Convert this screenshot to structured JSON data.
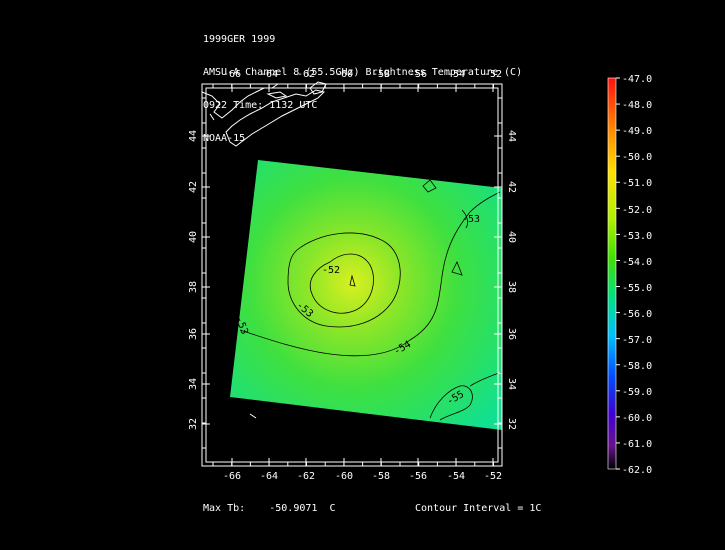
{
  "header": {
    "line1": "1999GER 1999",
    "line2": "AMSU-A Channel 8 (55.5GHz) Brightness Temperature (C)",
    "line3": "0922 Time: 1132 UTC",
    "line4": "NOAA-15"
  },
  "map": {
    "lon_ticks_top": [
      "-66",
      "-64",
      "-62",
      "-60",
      "-58",
      "-56",
      "-54",
      "-52"
    ],
    "lon_ticks_bottom": [
      "-66",
      "-64",
      "-62",
      "-60",
      "-58",
      "-56",
      "-54",
      "-52"
    ],
    "lat_ticks": [
      "44",
      "42",
      "40",
      "38",
      "36",
      "34",
      "32"
    ],
    "contour_labels": [
      "-52",
      "-53",
      "-53",
      "-54",
      "-55",
      "-53"
    ],
    "background": "#000000",
    "field_colors": {
      "warm_center": "#d8f020",
      "mid": "#40e040",
      "cool_edge": "#10e090"
    }
  },
  "colorbar": {
    "labels": [
      "-47.0",
      "-48.0",
      "-49.0",
      "-50.0",
      "-51.0",
      "-52.0",
      "-53.0",
      "-54.0",
      "-55.0",
      "-56.0",
      "-57.0",
      "-58.0",
      "-59.0",
      "-60.0",
      "-61.0",
      "-62.0"
    ]
  },
  "footer": {
    "max_label": "Max Tb:",
    "max_value": "-50.9071",
    "max_unit": "C",
    "contour_interval": "Contour Interval = 1C"
  }
}
